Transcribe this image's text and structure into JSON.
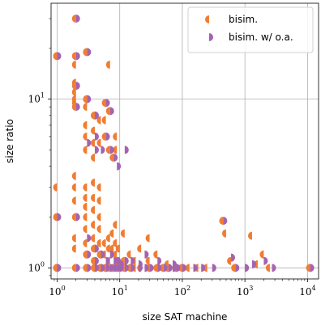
{
  "chart_data": {
    "type": "scatter",
    "title": "",
    "xlabel": "size SAT machine",
    "ylabel": "size ratio",
    "xscale": "log",
    "yscale": "log",
    "xlim": [
      0.8,
      15000
    ],
    "ylim": [
      0.86,
      37
    ],
    "xticks": [
      {
        "value": 1,
        "base": "10",
        "exp": "0"
      },
      {
        "value": 10,
        "base": "10",
        "exp": "1"
      },
      {
        "value": 100,
        "base": "10",
        "exp": "2"
      },
      {
        "value": 1000,
        "base": "10",
        "exp": "3"
      },
      {
        "value": 10000,
        "base": "10",
        "exp": "4"
      }
    ],
    "yticks": [
      {
        "value": 1,
        "base": "10",
        "exp": "0"
      },
      {
        "value": 10,
        "base": "10",
        "exp": "1"
      }
    ],
    "grid": true,
    "legend_position": "top-right",
    "series": [
      {
        "name": "bisim.",
        "color": "#f07d32",
        "marker": "left-half-circle",
        "points": [
          [
            1,
            18
          ],
          [
            1,
            3
          ],
          [
            1,
            2
          ],
          [
            1,
            1
          ],
          [
            2,
            30
          ],
          [
            2,
            18
          ],
          [
            2,
            16
          ],
          [
            2,
            12.5
          ],
          [
            2,
            12
          ],
          [
            2,
            11
          ],
          [
            2,
            10
          ],
          [
            2,
            9.5
          ],
          [
            2,
            9
          ],
          [
            2,
            3.5
          ],
          [
            2,
            3
          ],
          [
            2,
            2.5
          ],
          [
            2,
            2
          ],
          [
            2,
            1.5
          ],
          [
            2,
            1.3
          ],
          [
            2,
            1
          ],
          [
            3,
            19
          ],
          [
            3,
            10
          ],
          [
            3,
            9
          ],
          [
            3,
            7
          ],
          [
            3,
            6
          ],
          [
            3,
            5
          ],
          [
            3,
            3
          ],
          [
            3,
            2.6
          ],
          [
            3,
            2.3
          ],
          [
            3,
            2
          ],
          [
            3,
            1.7
          ],
          [
            3,
            1.4
          ],
          [
            3,
            1.2
          ],
          [
            3,
            1
          ],
          [
            4,
            8
          ],
          [
            4,
            6.5
          ],
          [
            4,
            5.5
          ],
          [
            4,
            4.5
          ],
          [
            4,
            3.2
          ],
          [
            4,
            2.6
          ],
          [
            4,
            2.2
          ],
          [
            4,
            1.8
          ],
          [
            4,
            1.5
          ],
          [
            4,
            1.3
          ],
          [
            4,
            1.1
          ],
          [
            4,
            1
          ],
          [
            5,
            7.5
          ],
          [
            5,
            5.5
          ],
          [
            5,
            3
          ],
          [
            5,
            2.5
          ],
          [
            5,
            2
          ],
          [
            5,
            1.7
          ],
          [
            5,
            1.4
          ],
          [
            5,
            1.2
          ],
          [
            5,
            1
          ],
          [
            6,
            9.5
          ],
          [
            6,
            7.5
          ],
          [
            6,
            6
          ],
          [
            6,
            1.4
          ],
          [
            6,
            1.2
          ],
          [
            6,
            1
          ],
          [
            7,
            16
          ],
          [
            7,
            8.5
          ],
          [
            7,
            5
          ],
          [
            7,
            1.5
          ],
          [
            7,
            1.3
          ],
          [
            7,
            1.1
          ],
          [
            7,
            1
          ],
          [
            8,
            4.5
          ],
          [
            8,
            1.6
          ],
          [
            8,
            1.3
          ],
          [
            8,
            1
          ],
          [
            9,
            6
          ],
          [
            9,
            5
          ],
          [
            9,
            1.8
          ],
          [
            9,
            1.4
          ],
          [
            9,
            1.2
          ],
          [
            9,
            1
          ],
          [
            10,
            1.3
          ],
          [
            10,
            1.1
          ],
          [
            10,
            1
          ],
          [
            12,
            1.6
          ],
          [
            12,
            1.1
          ],
          [
            12,
            1
          ],
          [
            15,
            1.2
          ],
          [
            15,
            1
          ],
          [
            18,
            1.1
          ],
          [
            18,
            1
          ],
          [
            22,
            1.3
          ],
          [
            22,
            1
          ],
          [
            30,
            1.5
          ],
          [
            30,
            1.1
          ],
          [
            30,
            1
          ],
          [
            40,
            1.2
          ],
          [
            40,
            1
          ],
          [
            50,
            1
          ],
          [
            60,
            1.05
          ],
          [
            60,
            1
          ],
          [
            80,
            1
          ],
          [
            100,
            1
          ],
          [
            130,
            1
          ],
          [
            180,
            1
          ],
          [
            250,
            1
          ],
          [
            450,
            1.9
          ],
          [
            500,
            1.6
          ],
          [
            600,
            1.1
          ],
          [
            700,
            1
          ],
          [
            1300,
            1.55
          ],
          [
            1600,
            1.05
          ],
          [
            2000,
            1.2
          ],
          [
            2500,
            1
          ],
          [
            11000,
            1
          ]
        ]
      },
      {
        "name": "bisim. w/ o.a.",
        "color": "#a463b0",
        "marker": "right-half-circle",
        "points": [
          [
            1,
            18
          ],
          [
            1,
            2
          ],
          [
            1,
            1
          ],
          [
            2,
            30
          ],
          [
            2,
            18
          ],
          [
            2,
            12
          ],
          [
            2,
            9
          ],
          [
            2,
            2
          ],
          [
            2,
            1
          ],
          [
            3,
            19
          ],
          [
            3,
            10
          ],
          [
            3,
            5.5
          ],
          [
            3,
            1.5
          ],
          [
            3,
            1.2
          ],
          [
            3,
            1
          ],
          [
            4,
            8
          ],
          [
            4,
            6
          ],
          [
            4,
            5
          ],
          [
            4,
            1.3
          ],
          [
            4,
            1.1
          ],
          [
            4,
            1
          ],
          [
            5,
            5
          ],
          [
            5,
            1.2
          ],
          [
            5,
            1
          ],
          [
            6,
            9.5
          ],
          [
            6,
            6
          ],
          [
            6,
            1.1
          ],
          [
            6,
            1
          ],
          [
            7,
            8.5
          ],
          [
            7,
            5
          ],
          [
            7,
            1.2
          ],
          [
            7,
            1
          ],
          [
            8,
            4.5
          ],
          [
            8,
            1.1
          ],
          [
            8,
            1
          ],
          [
            9,
            4
          ],
          [
            9,
            1.1
          ],
          [
            9,
            1
          ],
          [
            10,
            1.05
          ],
          [
            10,
            1
          ],
          [
            12,
            5
          ],
          [
            12,
            1.1
          ],
          [
            12,
            1
          ],
          [
            15,
            1.1
          ],
          [
            15,
            1
          ],
          [
            20,
            1.05
          ],
          [
            20,
            1
          ],
          [
            25,
            1.2
          ],
          [
            25,
            1
          ],
          [
            30,
            1
          ],
          [
            40,
            1.1
          ],
          [
            40,
            1
          ],
          [
            50,
            1
          ],
          [
            60,
            1
          ],
          [
            70,
            1.05
          ],
          [
            70,
            1
          ],
          [
            80,
            1
          ],
          [
            100,
            1
          ],
          [
            150,
            1
          ],
          [
            200,
            1
          ],
          [
            300,
            1
          ],
          [
            450,
            1.9
          ],
          [
            600,
            1.15
          ],
          [
            700,
            1
          ],
          [
            1000,
            1
          ],
          [
            1300,
            1.05
          ],
          [
            2000,
            1.1
          ],
          [
            2700,
            1
          ],
          [
            11000,
            1
          ]
        ]
      }
    ]
  }
}
